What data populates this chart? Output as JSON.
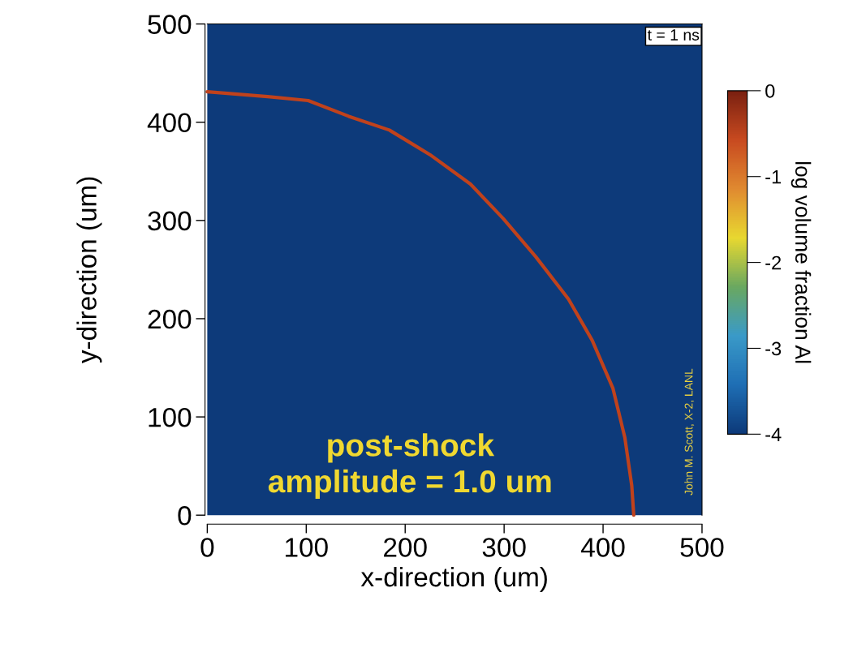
{
  "chart_data": {
    "type": "line",
    "xlabel": "x-direction (um)",
    "ylabel": "y-direction (um)",
    "clabel": "log volume fraction Al",
    "xlim": [
      0,
      500
    ],
    "ylim": [
      0,
      500
    ],
    "xticks": [
      0,
      100,
      200,
      300,
      400,
      500
    ],
    "yticks": [
      0,
      100,
      200,
      300,
      400,
      500
    ],
    "clim": [
      -4,
      0
    ],
    "cticks": [
      {
        "value": -4,
        "label": "-4"
      },
      {
        "value": -3,
        "label": "-3"
      },
      {
        "value": -2,
        "label": "-2"
      },
      {
        "value": -1,
        "label": "-1"
      },
      0
    ],
    "grid": false,
    "series": [
      {
        "color": "#c0421c",
        "x": [
          0,
          61,
          102,
          143,
          184,
          225,
          266,
          299,
          332,
          365,
          389,
          410,
          422,
          429,
          431
        ],
        "values": [
          431,
          426,
          422,
          406,
          392,
          367,
          337,
          302,
          263,
          220,
          178,
          129,
          79,
          30,
          0
        ]
      }
    ],
    "annotations": [
      "t = 1 ns",
      "post-shock\namplitude = 1.0 um",
      "John M. Scott, X-2, LANL"
    ]
  }
}
